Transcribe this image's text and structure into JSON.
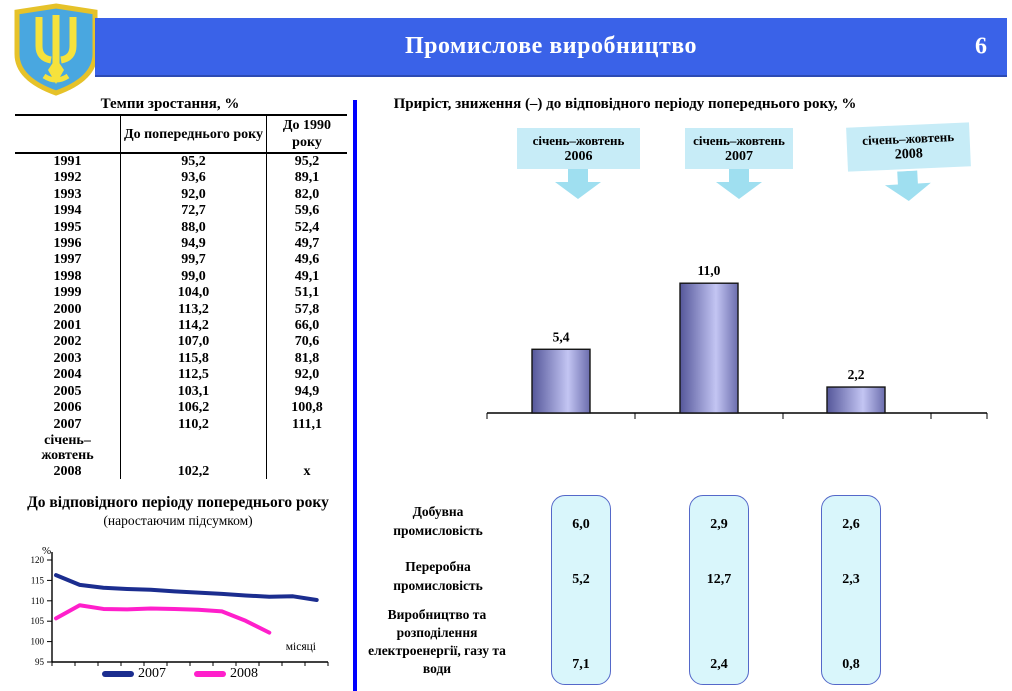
{
  "header": {
    "title": "Промислове виробництво",
    "page_number": "6",
    "emblem": "ukraine-trident-coat-of-arms"
  },
  "colors": {
    "banner": "#3a62e8",
    "divider": "#0000fe",
    "line_2007": "#1b2d8f",
    "line_2008": "#ff1fcb",
    "period_box_fill": "#c7ecf7",
    "arrow_fill": "#9fdff0",
    "panel_fill": "#d9f6fb",
    "panel_border": "#5468c9",
    "bar_dark": "#55579a",
    "bar_light": "#c3c5f3"
  },
  "growth_table": {
    "title": "Темпи зростання, %",
    "col_headers": [
      "До попереднього року",
      "До 1990 року"
    ],
    "rows": [
      [
        "1991",
        "95,2",
        "95,2"
      ],
      [
        "1992",
        "93,6",
        "89,1"
      ],
      [
        "1993",
        "92,0",
        "82,0"
      ],
      [
        "1994",
        "72,7",
        "59,6"
      ],
      [
        "1995",
        "88,0",
        "52,4"
      ],
      [
        "1996",
        "94,9",
        "49,7"
      ],
      [
        "1997",
        "99,7",
        "49,6"
      ],
      [
        "1998",
        "99,0",
        "49,1"
      ],
      [
        "1999",
        "104,0",
        "51,1"
      ],
      [
        "2000",
        "113,2",
        "57,8"
      ],
      [
        "2001",
        "114,2",
        "66,0"
      ],
      [
        "2002",
        "107,0",
        "70,6"
      ],
      [
        "2003",
        "115,8",
        "81,8"
      ],
      [
        "2004",
        "112,5",
        "92,0"
      ],
      [
        "2005",
        "103,1",
        "94,9"
      ],
      [
        "2006",
        "106,2",
        "100,8"
      ],
      [
        "2007",
        "110,2",
        "111,1"
      ],
      [
        "січень–\nжовтень\n2008",
        "102,2",
        "х"
      ]
    ]
  },
  "line_chart": {
    "title": "До відповідного періоду попереднього року",
    "subtitle": "(наростаючим підсумком)",
    "ylabel": "%",
    "xlabel": "місяці"
  },
  "right_panel": {
    "title": "Приріст, зниження (–) до відповідного періоду попереднього року, %",
    "period_boxes": [
      {
        "line1": "січень–жовтень",
        "line2": "2006"
      },
      {
        "line1": "січень–жовтень",
        "line2": "2007"
      },
      {
        "line1": "січень–жовтень",
        "line2": "2008"
      }
    ],
    "bar_labels": [
      "5,4",
      "11,0",
      "2,2"
    ],
    "sectors": {
      "row_labels": [
        "Добувна промисловість",
        "Переробна промисловість",
        "Виробництво та розподілення електроенергії, газу та води"
      ],
      "columns": [
        [
          "6,0",
          "5,2",
          "7,1"
        ],
        [
          "2,9",
          "12,7",
          "2,4"
        ],
        [
          "2,6",
          "2,3",
          "0,8"
        ]
      ]
    }
  },
  "chart_data": [
    {
      "type": "line",
      "title": "До відповідного періоду попереднього року (наростаючим підсумком)",
      "xlabel": "місяці",
      "ylabel": "%",
      "ylim": [
        95,
        120
      ],
      "ytick_step": 5,
      "x": [
        1,
        2,
        3,
        4,
        5,
        6,
        7,
        8,
        9,
        10,
        11,
        12
      ],
      "series": [
        {
          "name": "2007",
          "color": "#1b2d8f",
          "values": [
            116.3,
            113.9,
            113.2,
            112.9,
            112.7,
            112.3,
            112.0,
            111.7,
            111.3,
            111.0,
            111.1,
            110.2
          ]
        },
        {
          "name": "2008",
          "color": "#ff1fcb",
          "values": [
            105.7,
            108.9,
            108.0,
            107.9,
            108.1,
            108.0,
            107.8,
            107.4,
            105.1,
            102.2
          ]
        }
      ],
      "legend_position": "bottom",
      "grid": false
    },
    {
      "type": "bar",
      "title": "Приріст, зниження (–) до відповідного періоду попереднього року, %",
      "categories": [
        "січень–жовтень 2006",
        "січень–жовтень 2007",
        "січень–жовтень 2008"
      ],
      "values": [
        5.4,
        11.0,
        2.2
      ],
      "value_labels": [
        "5,4",
        "11,0",
        "2,2"
      ],
      "ylim": [
        0,
        12
      ],
      "grid": false
    },
    {
      "type": "table",
      "columns": [
        "січень–жовтень 2006",
        "січень–жовтень 2007",
        "січень–жовтень 2008"
      ],
      "row_labels": [
        "Добувна промисловість",
        "Переробна промисловість",
        "Виробництво та розподілення електроенергії, газу та води"
      ],
      "values": [
        [
          6.0,
          2.9,
          2.6
        ],
        [
          5.2,
          12.7,
          2.3
        ],
        [
          7.1,
          2.4,
          0.8
        ]
      ]
    }
  ]
}
